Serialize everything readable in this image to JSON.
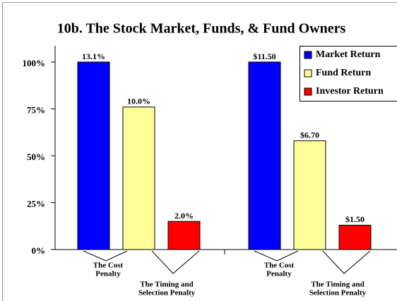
{
  "chart_data": {
    "type": "bar",
    "title": "10b. The Stock Market, Funds, & Fund Owners",
    "categories": [
      null,
      null
    ],
    "series": [
      {
        "name": "Market Return",
        "color": "#0000ff",
        "values": [
          100,
          100
        ],
        "value_labels": [
          "13.1%",
          "$11.50"
        ]
      },
      {
        "name": "Fund Return",
        "color": "#ffff99",
        "values": [
          76,
          58
        ],
        "value_labels": [
          "10.0%",
          "$6.70"
        ]
      },
      {
        "name": "Investor Return",
        "color": "#ff0000",
        "values": [
          15,
          13
        ],
        "value_labels": [
          "2.0%",
          "$1.50"
        ]
      }
    ],
    "ylim": [
      0,
      100
    ],
    "yticks": [
      {
        "value": 0,
        "label": "0%"
      },
      {
        "value": 25,
        "label": "25%"
      },
      {
        "value": 50,
        "label": "50%"
      },
      {
        "value": 75,
        "label": "75%"
      },
      {
        "value": 100,
        "label": "100%"
      }
    ],
    "legend": "top-right",
    "annotations": [
      [
        "The Cost",
        "Penalty"
      ],
      [
        "The Timing and",
        "Selection Penalty"
      ],
      [
        "The Cost",
        "Penalty"
      ],
      [
        "The Timing and",
        "Selection Penalty"
      ]
    ]
  }
}
